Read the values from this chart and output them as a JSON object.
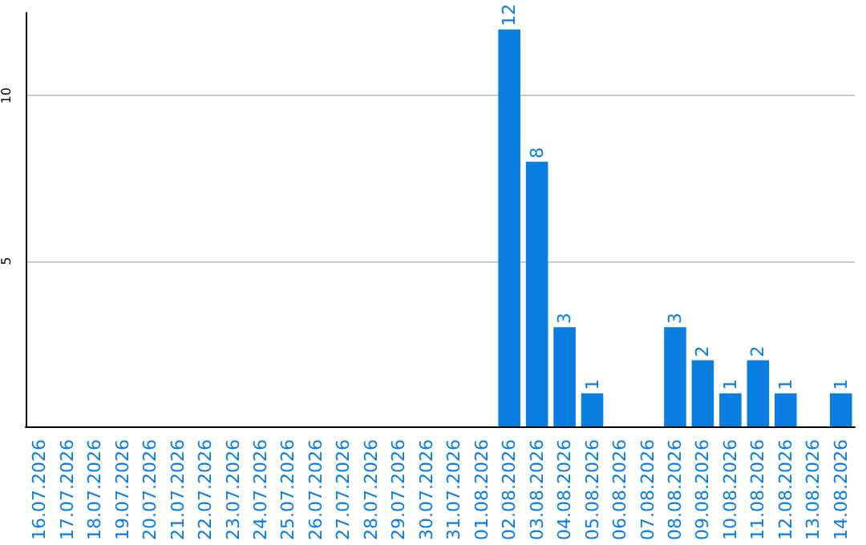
{
  "chart_data": {
    "type": "bar",
    "categories": [
      "16.07.2026",
      "17.07.2026",
      "18.07.2026",
      "19.07.2026",
      "20.07.2026",
      "21.07.2026",
      "22.07.2026",
      "23.07.2026",
      "24.07.2026",
      "25.07.2026",
      "26.07.2026",
      "27.07.2026",
      "28.07.2026",
      "29.07.2026",
      "30.07.2026",
      "31.07.2026",
      "01.08.2026",
      "02.08.2026",
      "03.08.2026",
      "04.08.2026",
      "05.08.2026",
      "06.08.2026",
      "07.08.2026",
      "08.08.2026",
      "09.08.2026",
      "10.08.2026",
      "11.08.2026",
      "12.08.2026",
      "13.08.2026",
      "14.08.2026"
    ],
    "values": [
      0,
      0,
      0,
      0,
      0,
      0,
      0,
      0,
      0,
      0,
      0,
      0,
      0,
      0,
      0,
      0,
      0,
      12,
      8,
      3,
      1,
      0,
      0,
      3,
      2,
      1,
      2,
      1,
      0,
      1
    ],
    "value_labels": [
      null,
      null,
      null,
      null,
      null,
      null,
      null,
      null,
      null,
      null,
      null,
      null,
      null,
      null,
      null,
      null,
      null,
      "12",
      "8",
      "3",
      "1",
      null,
      null,
      "3",
      "2",
      "1",
      "2",
      "1",
      null,
      "1"
    ],
    "color": "#0a7de0",
    "ylim": [
      0,
      12.5
    ],
    "yticks": [
      5,
      10
    ],
    "grid": "y"
  }
}
